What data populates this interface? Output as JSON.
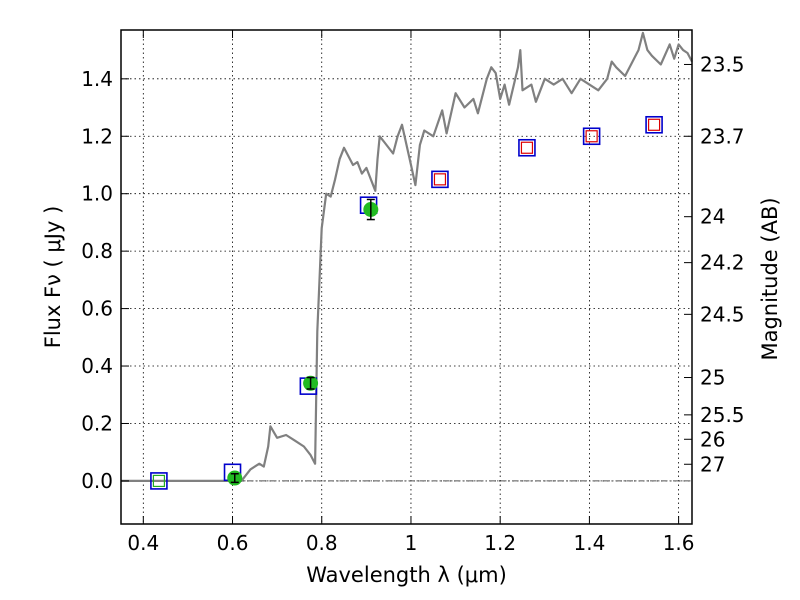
{
  "chart_data": {
    "type": "scatter",
    "xlabel": "Wavelength  λ (μm)",
    "ylabel": "Flux  Fν  ( μJy )",
    "ylabel_right": "Magnitude (AB)",
    "xlim": [
      0.35,
      1.63
    ],
    "ylim": [
      -0.15,
      1.57
    ],
    "grid": true,
    "x_ticks": [
      {
        "value": 0.4,
        "label": "0.4"
      },
      {
        "value": 0.6,
        "label": "0.6"
      },
      {
        "value": 0.8,
        "label": "0.8"
      },
      {
        "value": 1.0,
        "label": "1"
      },
      {
        "value": 1.2,
        "label": "1.2"
      },
      {
        "value": 1.4,
        "label": "1.4"
      },
      {
        "value": 1.6,
        "label": "1.6"
      }
    ],
    "y_ticks": [
      {
        "value": 0.0,
        "label": "0.0"
      },
      {
        "value": 0.2,
        "label": "0.2"
      },
      {
        "value": 0.4,
        "label": "0.4"
      },
      {
        "value": 0.6,
        "label": "0.6"
      },
      {
        "value": 0.8,
        "label": "0.8"
      },
      {
        "value": 1.0,
        "label": "1.0"
      },
      {
        "value": 1.2,
        "label": "1.2"
      },
      {
        "value": 1.4,
        "label": "1.4"
      }
    ],
    "magnitude_ticks": [
      {
        "flux": 1.45,
        "label": "23.5"
      },
      {
        "flux": 1.2,
        "label": "23.7"
      },
      {
        "flux": 0.92,
        "label": "24"
      },
      {
        "flux": 0.76,
        "label": "24.2"
      },
      {
        "flux": 0.58,
        "label": "24.5"
      },
      {
        "flux": 0.36,
        "label": "25"
      },
      {
        "flux": 0.23,
        "label": "25.5"
      },
      {
        "flux": 0.145,
        "label": "26"
      },
      {
        "flux": 0.058,
        "label": "27"
      }
    ],
    "zero_line": {
      "y": 0.0,
      "style": "dash-dot",
      "color": "#555555"
    },
    "series": [
      {
        "type": "line",
        "color": "#808080",
        "points": [
          [
            0.35,
            0.0
          ],
          [
            0.62,
            0.0
          ],
          [
            0.64,
            0.04
          ],
          [
            0.66,
            0.06
          ],
          [
            0.67,
            0.05
          ],
          [
            0.68,
            0.12
          ],
          [
            0.685,
            0.19
          ],
          [
            0.7,
            0.15
          ],
          [
            0.72,
            0.16
          ],
          [
            0.74,
            0.14
          ],
          [
            0.76,
            0.12
          ],
          [
            0.775,
            0.09
          ],
          [
            0.785,
            0.06
          ],
          [
            0.79,
            0.52
          ],
          [
            0.8,
            0.88
          ],
          [
            0.81,
            1.0
          ],
          [
            0.82,
            0.99
          ],
          [
            0.83,
            1.05
          ],
          [
            0.84,
            1.12
          ],
          [
            0.85,
            1.16
          ],
          [
            0.86,
            1.13
          ],
          [
            0.87,
            1.1
          ],
          [
            0.88,
            1.11
          ],
          [
            0.89,
            1.07
          ],
          [
            0.9,
            1.09
          ],
          [
            0.92,
            1.01
          ],
          [
            0.925,
            1.12
          ],
          [
            0.93,
            1.2
          ],
          [
            0.94,
            1.18
          ],
          [
            0.96,
            1.14
          ],
          [
            0.97,
            1.2
          ],
          [
            0.98,
            1.24
          ],
          [
            1.0,
            1.1
          ],
          [
            1.01,
            1.03
          ],
          [
            1.02,
            1.17
          ],
          [
            1.03,
            1.22
          ],
          [
            1.05,
            1.2
          ],
          [
            1.07,
            1.29
          ],
          [
            1.08,
            1.21
          ],
          [
            1.1,
            1.35
          ],
          [
            1.12,
            1.3
          ],
          [
            1.14,
            1.33
          ],
          [
            1.15,
            1.28
          ],
          [
            1.17,
            1.4
          ],
          [
            1.18,
            1.44
          ],
          [
            1.19,
            1.42
          ],
          [
            1.2,
            1.33
          ],
          [
            1.21,
            1.38
          ],
          [
            1.22,
            1.31
          ],
          [
            1.24,
            1.44
          ],
          [
            1.245,
            1.5
          ],
          [
            1.25,
            1.36
          ],
          [
            1.27,
            1.38
          ],
          [
            1.28,
            1.32
          ],
          [
            1.3,
            1.4
          ],
          [
            1.32,
            1.38
          ],
          [
            1.34,
            1.4
          ],
          [
            1.36,
            1.35
          ],
          [
            1.38,
            1.4
          ],
          [
            1.4,
            1.38
          ],
          [
            1.42,
            1.36
          ],
          [
            1.44,
            1.4
          ],
          [
            1.45,
            1.46
          ],
          [
            1.46,
            1.44
          ],
          [
            1.48,
            1.41
          ],
          [
            1.5,
            1.47
          ],
          [
            1.51,
            1.5
          ],
          [
            1.52,
            1.56
          ],
          [
            1.53,
            1.5
          ],
          [
            1.54,
            1.48
          ],
          [
            1.56,
            1.45
          ],
          [
            1.58,
            1.52
          ],
          [
            1.59,
            1.47
          ],
          [
            1.6,
            1.52
          ],
          [
            1.61,
            1.5
          ],
          [
            1.62,
            1.49
          ],
          [
            1.63,
            1.46
          ]
        ]
      },
      {
        "type": "scatter",
        "marker": "square-open",
        "color": "#0000cc",
        "points": [
          [
            0.435,
            0.0
          ],
          [
            0.6,
            0.03
          ],
          [
            0.77,
            0.33
          ],
          [
            0.905,
            0.96
          ],
          [
            1.065,
            1.05
          ],
          [
            1.26,
            1.16
          ],
          [
            1.405,
            1.2
          ],
          [
            1.545,
            1.24
          ]
        ]
      },
      {
        "type": "scatter",
        "marker": "square-open-small",
        "color": "#dd0000",
        "points": [
          [
            1.065,
            1.05
          ],
          [
            1.26,
            1.16
          ],
          [
            1.405,
            1.2
          ],
          [
            1.545,
            1.24
          ]
        ]
      },
      {
        "type": "scatter",
        "marker": "circle-errorbar",
        "color": "#22bb22",
        "points": [
          {
            "x": 0.605,
            "y": 0.01,
            "err": 0.015
          },
          {
            "x": 0.775,
            "y": 0.34,
            "err": 0.02
          },
          {
            "x": 0.91,
            "y": 0.945,
            "err": 0.035
          }
        ]
      },
      {
        "type": "scatter",
        "marker": "square-open-small",
        "color": "#22aa22",
        "points": [
          [
            0.435,
            0.0
          ]
        ]
      }
    ]
  }
}
